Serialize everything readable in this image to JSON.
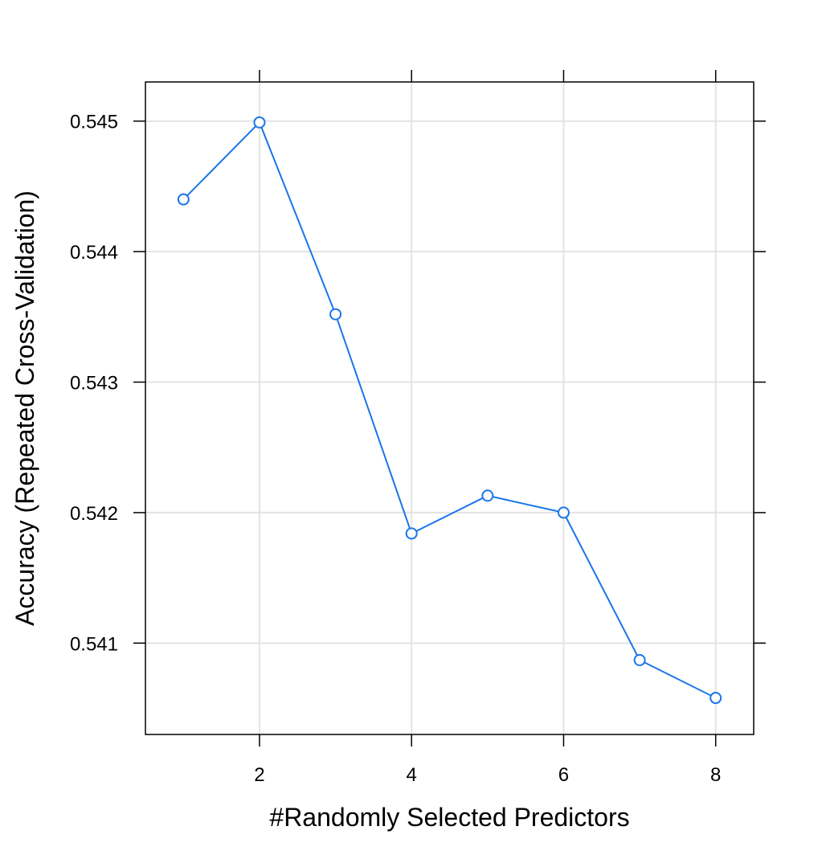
{
  "chart_data": {
    "type": "line",
    "title": "",
    "xlabel": "#Randomly Selected Predictors",
    "ylabel": "Accuracy (Repeated Cross-Validation)",
    "xlim": [
      0.5,
      8.5
    ],
    "ylim": [
      0.5403,
      0.5453
    ],
    "x_ticks": [
      2,
      4,
      6,
      8
    ],
    "x_tick_labels": [
      "2",
      "4",
      "6",
      "8"
    ],
    "y_ticks": [
      0.541,
      0.542,
      0.543,
      0.544,
      0.545
    ],
    "y_tick_labels": [
      "0.541",
      "0.542",
      "0.543",
      "0.544",
      "0.545"
    ],
    "grid": true,
    "x": [
      1,
      2,
      3,
      4,
      5,
      6,
      7,
      8
    ],
    "series": [
      {
        "values": [
          0.5444,
          0.54499,
          0.54352,
          0.54184,
          0.54213,
          0.542,
          0.54087,
          0.54058
        ]
      }
    ],
    "colors": {
      "line": "#1a75e8",
      "grid": "#e3e3e3",
      "frame": "#000000"
    }
  }
}
